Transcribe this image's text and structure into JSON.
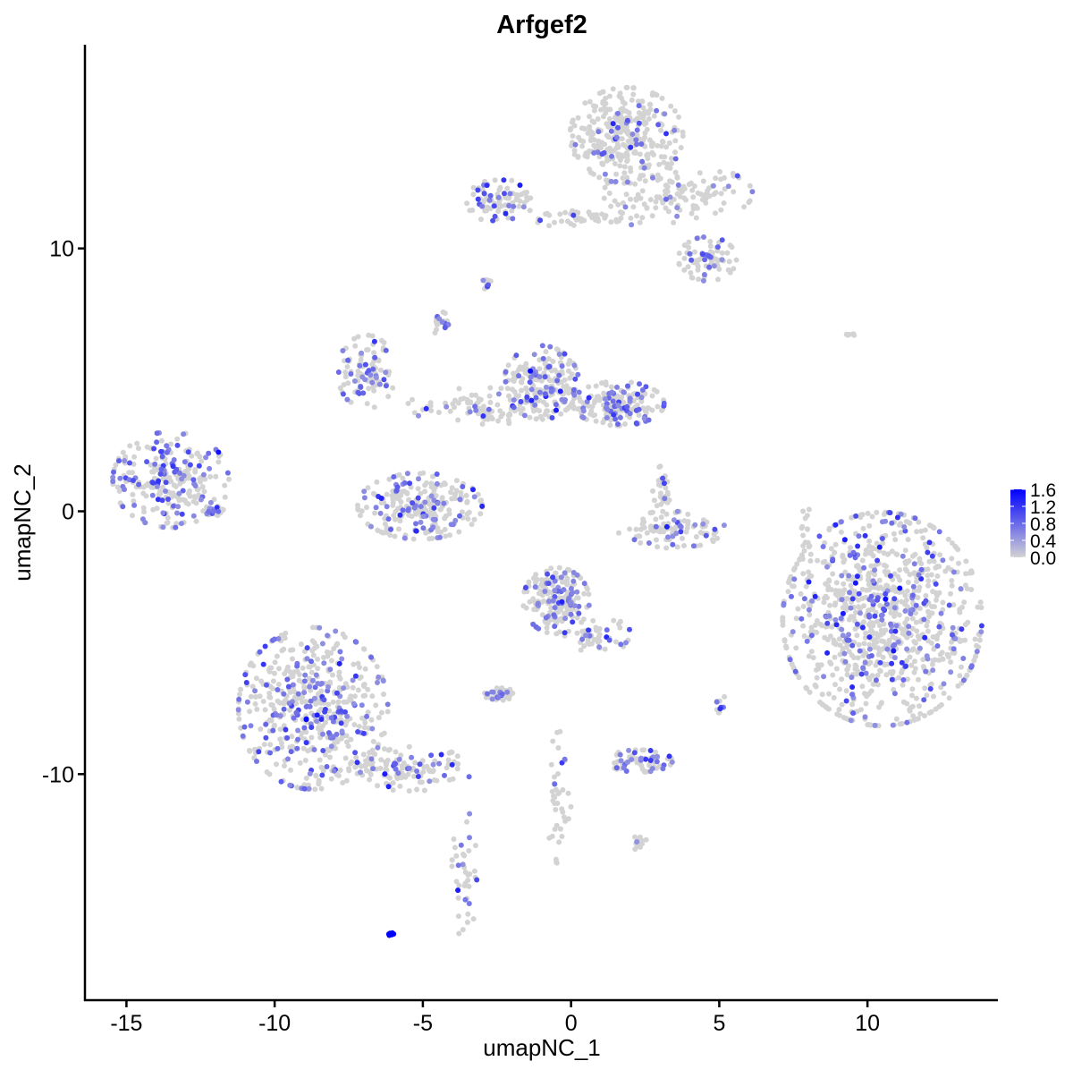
{
  "chart_data": {
    "type": "scatter",
    "title": "Arfgef2",
    "xlabel": "umapNC_1",
    "ylabel": "umapNC_2",
    "xlim": [
      -16.4,
      14.4
    ],
    "ylim": [
      -18.6,
      17.75
    ],
    "x_ticks": [
      -15,
      -10,
      -5,
      0,
      5,
      10
    ],
    "x_tick_labels": [
      "-15",
      "-10",
      "-5",
      "0",
      "5",
      "10"
    ],
    "y_ticks": [
      -10,
      0,
      10
    ],
    "y_tick_labels": [
      "-10",
      "0",
      "10"
    ],
    "grid": false,
    "legend": {
      "placement": "right",
      "type": "colorbar",
      "min": 0.0,
      "max": 1.6,
      "ticks": [
        0.0,
        0.4,
        0.8,
        1.2,
        1.6
      ],
      "tick_labels": [
        "0.0",
        "0.4",
        "0.8",
        "1.2",
        "1.6"
      ],
      "low_color": "#D3D3D3",
      "high_color": "#0000FF"
    },
    "clusters": [
      {
        "center": [
          1.87,
          14.3
        ],
        "spread": [
          1.36,
          1.3
        ],
        "n_cells": 320,
        "fraction_expressing": 0.12
      },
      {
        "center": [
          3.6,
          12.1
        ],
        "spread": [
          1.8,
          0.8
        ],
        "n_cells": 130,
        "fraction_expressing": 0.08
      },
      {
        "center": [
          4.6,
          9.6
        ],
        "spread": [
          0.7,
          0.6
        ],
        "n_cells": 80,
        "fraction_expressing": 0.15
      },
      {
        "center": [
          -2.4,
          11.8
        ],
        "spread": [
          0.8,
          0.6
        ],
        "n_cells": 90,
        "fraction_expressing": 0.2
      },
      {
        "center": [
          0.6,
          11.1
        ],
        "spread": [
          1.3,
          0.25
        ],
        "n_cells": 45,
        "fraction_expressing": 0.1
      },
      {
        "center": [
          -2.8,
          8.7
        ],
        "spread": [
          0.15,
          0.2
        ],
        "n_cells": 10,
        "fraction_expressing": 0.3
      },
      {
        "center": [
          -13.5,
          1.2
        ],
        "spread": [
          1.4,
          1.3
        ],
        "n_cells": 260,
        "fraction_expressing": 0.35
      },
      {
        "center": [
          -6.9,
          5.3
        ],
        "spread": [
          0.7,
          1.0
        ],
        "n_cells": 100,
        "fraction_expressing": 0.3
      },
      {
        "center": [
          -5.1,
          0.2
        ],
        "spread": [
          1.5,
          0.9
        ],
        "n_cells": 250,
        "fraction_expressing": 0.25
      },
      {
        "center": [
          -1.0,
          4.9
        ],
        "spread": [
          0.9,
          1.0
        ],
        "n_cells": 200,
        "fraction_expressing": 0.25
      },
      {
        "center": [
          1.6,
          4.1
        ],
        "spread": [
          1.1,
          0.6
        ],
        "n_cells": 180,
        "fraction_expressing": 0.3
      },
      {
        "center": [
          -3.0,
          4.0
        ],
        "spread": [
          1.8,
          0.5
        ],
        "n_cells": 90,
        "fraction_expressing": 0.1
      },
      {
        "center": [
          3.4,
          -0.7
        ],
        "spread": [
          1.3,
          0.5
        ],
        "n_cells": 100,
        "fraction_expressing": 0.2
      },
      {
        "center": [
          3.1,
          0.9
        ],
        "spread": [
          0.25,
          0.6
        ],
        "n_cells": 30,
        "fraction_expressing": 0.2
      },
      {
        "center": [
          10.5,
          -4.1
        ],
        "spread": [
          2.4,
          2.9
        ],
        "n_cells": 950,
        "fraction_expressing": 0.2
      },
      {
        "center": [
          -0.5,
          -3.4
        ],
        "spread": [
          0.8,
          0.9
        ],
        "n_cells": 200,
        "fraction_expressing": 0.3
      },
      {
        "center": [
          0.9,
          -4.7
        ],
        "spread": [
          0.8,
          0.5
        ],
        "n_cells": 50,
        "fraction_expressing": 0.15
      },
      {
        "center": [
          -8.7,
          -7.5
        ],
        "spread": [
          1.8,
          2.2
        ],
        "n_cells": 520,
        "fraction_expressing": 0.3
      },
      {
        "center": [
          -5.4,
          -9.8
        ],
        "spread": [
          1.5,
          0.6
        ],
        "n_cells": 120,
        "fraction_expressing": 0.2
      },
      {
        "center": [
          -3.6,
          -13.8
        ],
        "spread": [
          0.3,
          1.8
        ],
        "n_cells": 40,
        "fraction_expressing": 0.2
      },
      {
        "center": [
          -2.4,
          -7.0
        ],
        "spread": [
          0.4,
          0.2
        ],
        "n_cells": 40,
        "fraction_expressing": 0.3
      },
      {
        "center": [
          2.3,
          -9.5
        ],
        "spread": [
          0.8,
          0.3
        ],
        "n_cells": 70,
        "fraction_expressing": 0.35
      },
      {
        "center": [
          -0.4,
          -10.9
        ],
        "spread": [
          0.3,
          1.8
        ],
        "n_cells": 40,
        "fraction_expressing": 0.15
      },
      {
        "center": [
          2.3,
          -12.6
        ],
        "spread": [
          0.25,
          0.2
        ],
        "n_cells": 15,
        "fraction_expressing": 0.1
      },
      {
        "center": [
          -6.07,
          -16.1
        ],
        "spread": [
          0.08,
          0.05
        ],
        "n_cells": 8,
        "fraction_expressing": 1.0,
        "expression": 1.6
      },
      {
        "center": [
          7.9,
          -1.0
        ],
        "spread": [
          0.15,
          1.2
        ],
        "n_cells": 20,
        "fraction_expressing": 0.0
      },
      {
        "center": [
          9.4,
          6.7
        ],
        "spread": [
          0.15,
          0.05
        ],
        "n_cells": 5,
        "fraction_expressing": 0.0
      },
      {
        "center": [
          -4.5,
          7.2
        ],
        "spread": [
          0.3,
          0.3
        ],
        "n_cells": 20,
        "fraction_expressing": 0.3
      },
      {
        "center": [
          -12.0,
          0.0
        ],
        "spread": [
          0.2,
          0.15
        ],
        "n_cells": 20,
        "fraction_expressing": 0.2
      },
      {
        "center": [
          5.0,
          -7.3
        ],
        "spread": [
          0.15,
          0.3
        ],
        "n_cells": 10,
        "fraction_expressing": 0.4
      }
    ]
  }
}
